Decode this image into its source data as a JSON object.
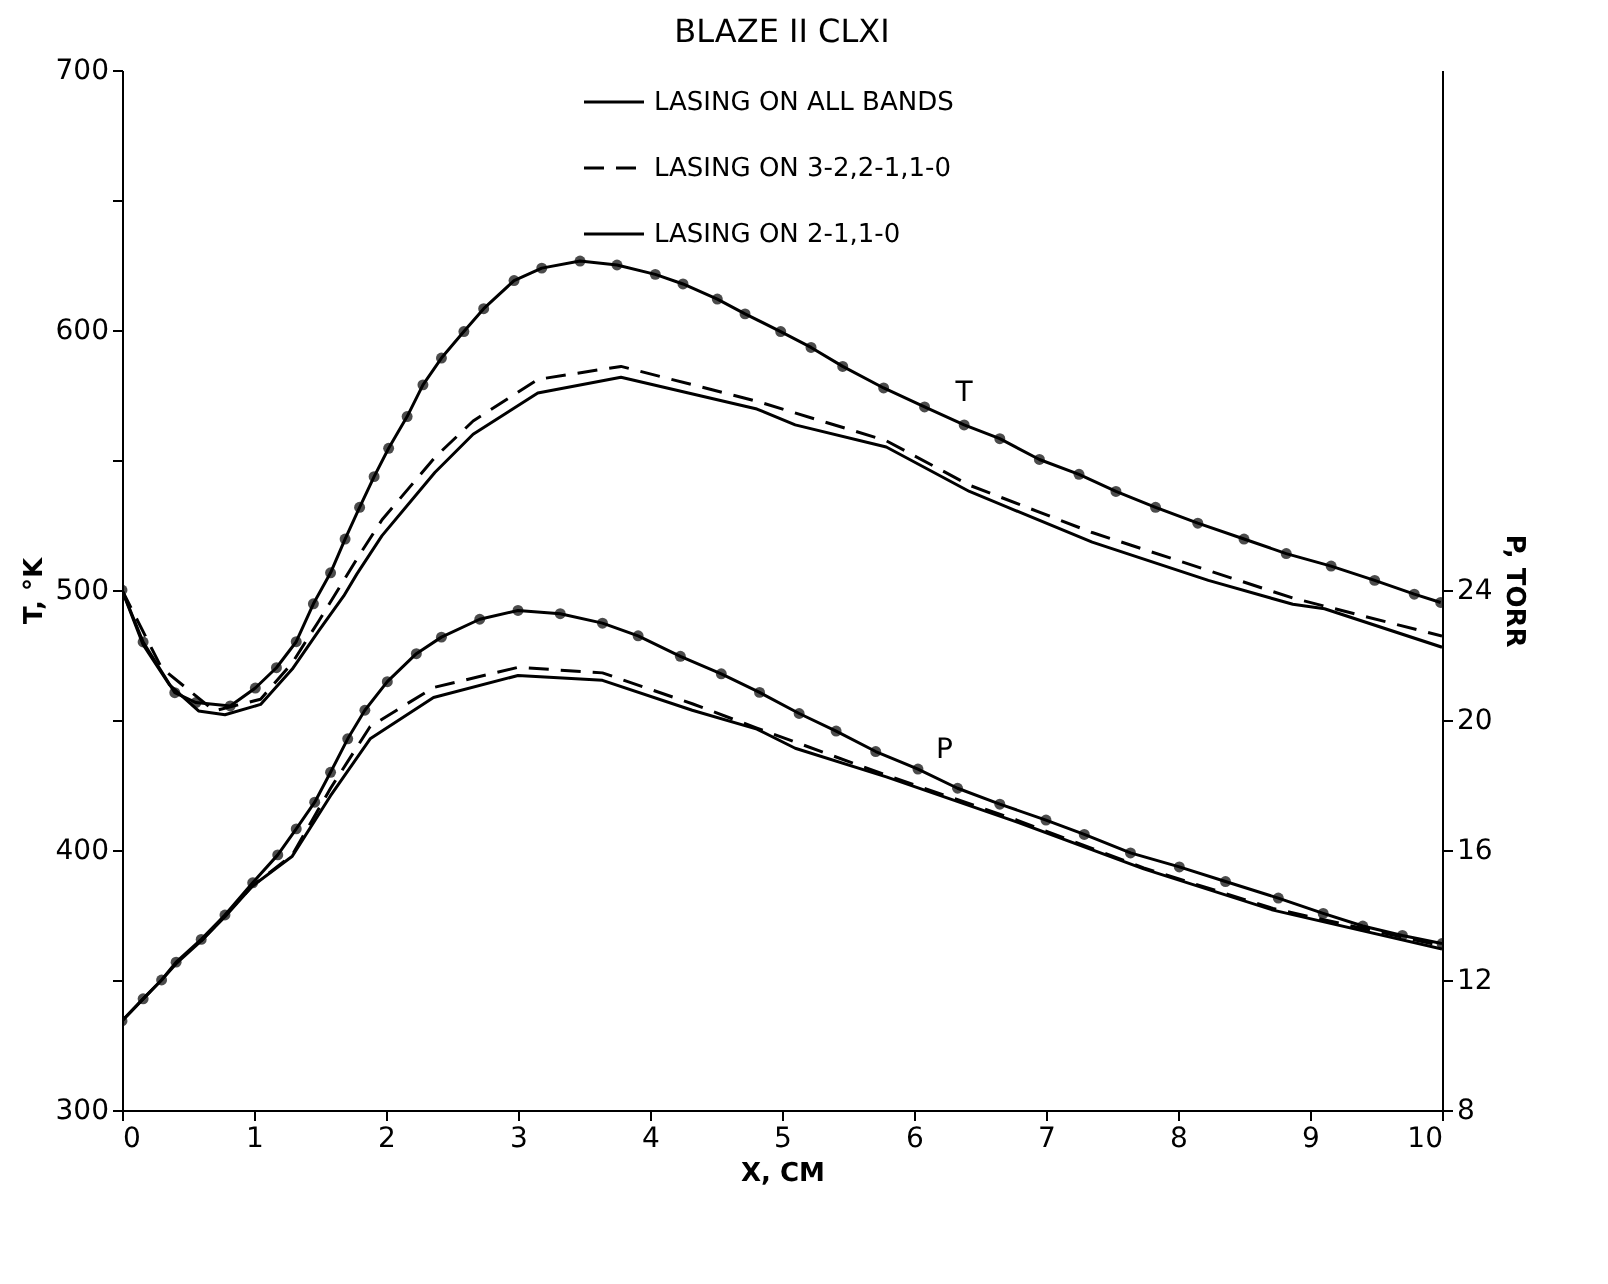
{
  "chart_data": {
    "type": "line",
    "title": "BLAZE II CLXI",
    "xlabel": "X, CM",
    "ylabel": "T, °K",
    "y2label": "P, TORR",
    "xlim": [
      0,
      10
    ],
    "xticks": [
      0,
      1,
      2,
      3,
      4,
      5,
      6,
      7,
      8,
      9,
      10
    ],
    "ylim": [
      300,
      700
    ],
    "yticks": [
      300,
      {
        "value": 350,
        "label": null
      },
      400,
      {
        "value": 450,
        "label": null
      },
      500,
      {
        "value": 550,
        "label": null
      },
      600,
      {
        "value": 650,
        "label": null
      },
      700
    ],
    "y2lim": [
      8,
      40
    ],
    "y2ticks": [
      8,
      12,
      16,
      20,
      24
    ],
    "legend": "top",
    "grid": false,
    "annotations": [
      {
        "text": "T",
        "x": 6.38,
        "y": 563.5
      },
      {
        "text": "P",
        "x": 6.23,
        "y": 426
      }
    ],
    "series": [
      {
        "name": "LASING ON ALL BANDS",
        "color": "#000000",
        "line_style": "solid",
        "marker": "none",
        "x": [
          0,
          0.16,
          0.36,
          0.58,
          0.78,
          1.05,
          1.29,
          1.49,
          1.68,
          1.78,
          1.97,
          2.37,
          2.66,
          3.15,
          3.78,
          4.81,
          5.1,
          5.79,
          6.42,
          7.35,
          8.23,
          8.87,
          9.11,
          10
        ],
        "values": [
          500,
          479,
          463.5,
          453.5,
          452,
          456,
          469.6,
          484.3,
          497.7,
          506.2,
          520.9,
          545.2,
          559.9,
          575.8,
          581.8,
          569.6,
          563.5,
          555,
          537.9,
          518.4,
          503.7,
          494.5,
          492.8,
          478
        ]
      },
      {
        "name": "LASING ON 3-2,2-1,1-0",
        "color": "#000000",
        "line_style": "dashed",
        "marker": "none",
        "x": [
          0,
          0.3,
          0.7,
          1.05,
          1.29,
          1.49,
          1.78,
          1.97,
          2.37,
          2.66,
          3.15,
          3.78,
          4.81,
          5.79,
          6.42,
          7.35,
          8.87,
          10
        ],
        "values": [
          500,
          470,
          453.5,
          458,
          472,
          488,
          512,
          527,
          551,
          565,
          581,
          586,
          572.6,
          557.4,
          540.3,
          522.1,
          496.9,
          482.3
        ]
      },
      {
        "name": "LASING ON 2-1,1-0",
        "color": "#000000",
        "line_style": "solid",
        "marker": "circle",
        "x": [
          0,
          0.16,
          0.4,
          0.56,
          0.82,
          1.01,
          1.17,
          1.32,
          1.45,
          1.58,
          1.69,
          1.8,
          1.91,
          2.02,
          2.16,
          2.28,
          2.42,
          2.59,
          2.74,
          2.97,
          3.18,
          3.47,
          3.75,
          4.04,
          4.25,
          4.51,
          4.72,
          4.99,
          5.22,
          5.46,
          5.77,
          6.08,
          6.38,
          6.65,
          6.95,
          7.25,
          7.53,
          7.83,
          8.15,
          8.5,
          8.82,
          9.16,
          9.49,
          9.79,
          9.99
        ],
        "values": [
          500,
          480,
          460.5,
          456.7,
          455.4,
          462.3,
          470.1,
          480.1,
          494.7,
          506.6,
          519.6,
          531.8,
          543.6,
          554.5,
          566.7,
          578.9,
          589.2,
          599.4,
          608.2,
          619,
          623.8,
          626.5,
          625,
          621.4,
          617.7,
          611.9,
          606.2,
          599.4,
          593.3,
          586,
          577.7,
          570.4,
          563.5,
          558.2,
          550.2,
          544.5,
          537.9,
          531.8,
          525.7,
          519.6,
          514,
          509.2,
          503.7,
          498.4,
          495.2
        ]
      },
      {
        "color": "#000000",
        "line_style": "solid",
        "marker": "none",
        "axis": "y2",
        "x": [
          0,
          0.16,
          0.3,
          0.41,
          0.6,
          0.78,
          0.99,
          1.29,
          1.58,
          1.88,
          2.36,
          3.0,
          3.64,
          4.32,
          4.81,
          5.1,
          5.79,
          6.76,
          7.74,
          8.72,
          10
        ],
        "values": [
          10.74,
          11.42,
          12.0,
          12.5,
          13.2,
          13.95,
          14.9,
          15.81,
          17.67,
          19.42,
          20.69,
          21.37,
          21.22,
          20.3,
          19.72,
          19.13,
          18.25,
          16.89,
          15.42,
          14.15,
          12.95
        ]
      },
      {
        "color": "#000000",
        "line_style": "dashed",
        "marker": "none",
        "axis": "y2",
        "x": [
          0.6,
          0.99,
          1.29,
          1.58,
          1.88,
          2.36,
          3.0,
          3.64,
          4.32,
          4.81,
          5.79,
          6.76,
          7.74,
          8.72,
          10
        ],
        "values": [
          13.2,
          14.9,
          15.85,
          17.9,
          19.8,
          21.0,
          21.62,
          21.45,
          20.5,
          19.75,
          18.3,
          16.95,
          15.45,
          14.2,
          13.05
        ]
      },
      {
        "color": "#000000",
        "line_style": "solid",
        "marker": "circle",
        "axis": "y2",
        "x": [
          0,
          0.16,
          0.3,
          0.41,
          0.6,
          0.78,
          0.99,
          1.18,
          1.32,
          1.46,
          1.58,
          1.71,
          1.84,
          2.01,
          2.23,
          2.42,
          2.71,
          3.0,
          3.32,
          3.64,
          3.91,
          4.23,
          4.54,
          4.83,
          5.13,
          5.41,
          5.71,
          6.03,
          6.33,
          6.65,
          7.0,
          7.29,
          7.64,
          8.01,
          8.36,
          8.76,
          9.1,
          9.4,
          9.7,
          10
        ],
        "values": [
          10.74,
          11.42,
          12.0,
          12.55,
          13.25,
          14.0,
          14.99,
          15.85,
          16.65,
          17.47,
          18.39,
          19.42,
          20.3,
          21.18,
          22.04,
          22.55,
          23.1,
          23.37,
          23.27,
          22.98,
          22.59,
          21.96,
          21.42,
          20.85,
          20.2,
          19.66,
          19.03,
          18.49,
          17.9,
          17.41,
          16.92,
          16.48,
          15.91,
          15.48,
          15.03,
          14.52,
          14.05,
          13.66,
          13.37,
          13.12
        ]
      }
    ]
  }
}
